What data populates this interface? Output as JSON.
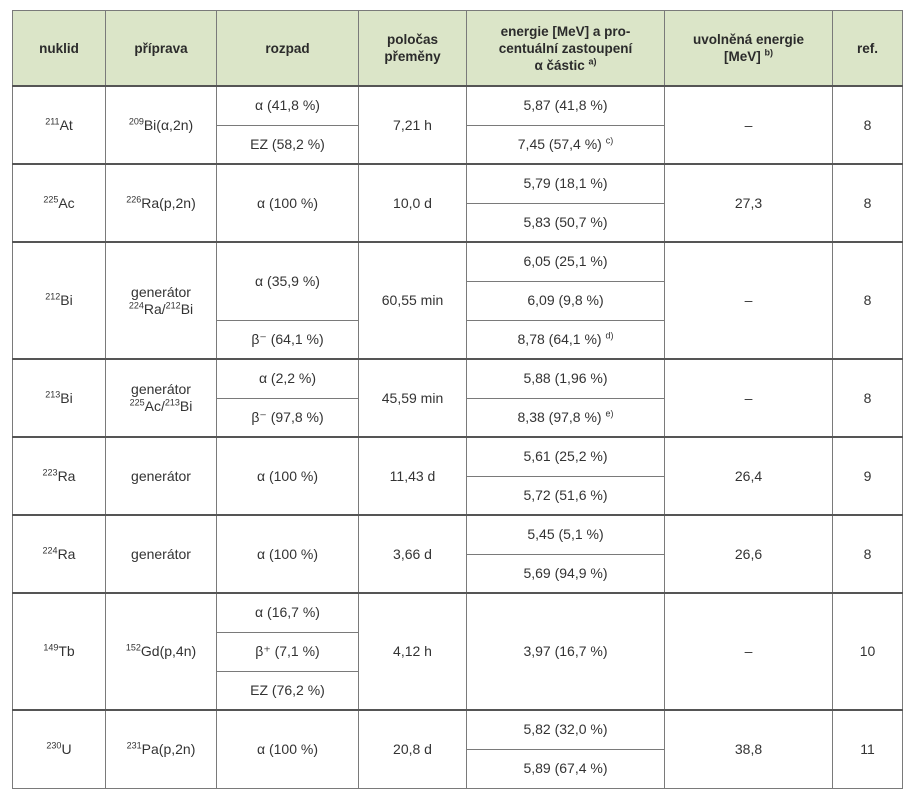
{
  "headers": {
    "nuklid": "nuklid",
    "priprava": "příprava",
    "rozpad": "rozpad",
    "polocas_line1": "poločas",
    "polocas_line2": "přeměny",
    "energie_line1": "energie [MeV] a pro-",
    "energie_line2": "centuální zastoupení",
    "energie_line3": "α částic",
    "energie_note": "a)",
    "uvolnena_line1": "uvolněná energie",
    "uvolnena_line2": "[MeV]",
    "uvolnena_note": "b)",
    "ref": "ref."
  },
  "rows": [
    {
      "nuclide_mass": "211",
      "nuclide_symbol": "At",
      "prep_mass": "209",
      "prep_rest": "Bi(α,2n)",
      "decay": [
        "α (41,8 %)",
        "EZ (58,2 %)"
      ],
      "half_life": "7,21 h",
      "energies": [
        "5,87 (41,8 %)",
        "7,45 (57,4 %)"
      ],
      "energy_notes": [
        "",
        "c)"
      ],
      "released": "–",
      "ref": "8"
    },
    {
      "nuclide_mass": "225",
      "nuclide_symbol": "Ac",
      "prep_mass": "226",
      "prep_rest": "Ra(p,2n)",
      "decay": [
        "α (100 %)"
      ],
      "half_life": "10,0 d",
      "energies": [
        "5,79 (18,1 %)",
        "5,83 (50,7 %)"
      ],
      "released": "27,3",
      "ref": "8"
    },
    {
      "nuclide_mass": "212",
      "nuclide_symbol": "Bi",
      "prep_line1": "generátor",
      "prep_a_mass": "224",
      "prep_a_sym": "Ra/",
      "prep_b_mass": "212",
      "prep_b_sym": "Bi",
      "decay": [
        "α (35,9 %)",
        "β⁻ (64,1 %)"
      ],
      "half_life": "60,55 min",
      "energies": [
        "6,05 (25,1 %)",
        "6,09 (9,8 %)",
        "8,78 (64,1 %)"
      ],
      "energy_note_last": "d)",
      "released": "–",
      "ref": "8"
    },
    {
      "nuclide_mass": "213",
      "nuclide_symbol": "Bi",
      "prep_line1": "generátor",
      "prep_a_mass": "225",
      "prep_a_sym": "Ac/",
      "prep_b_mass": "213",
      "prep_b_sym": "Bi",
      "decay": [
        "α (2,2 %)",
        "β⁻ (97,8 %)"
      ],
      "half_life": "45,59 min",
      "energies": [
        "5,88 (1,96 %)",
        "8,38 (97,8 %)"
      ],
      "energy_note_last": "e)",
      "released": "–",
      "ref": "8"
    },
    {
      "nuclide_mass": "223",
      "nuclide_symbol": "Ra",
      "prep": "generátor",
      "decay": [
        "α (100 %)"
      ],
      "half_life": "11,43 d",
      "energies": [
        "5,61 (25,2 %)",
        "5,72 (51,6 %)"
      ],
      "released": "26,4",
      "ref": "9"
    },
    {
      "nuclide_mass": "224",
      "nuclide_symbol": "Ra",
      "prep": "generátor",
      "decay": [
        "α (100 %)"
      ],
      "half_life": "3,66 d",
      "energies": [
        "5,45 (5,1 %)",
        "5,69 (94,9 %)"
      ],
      "released": "26,6",
      "ref": "8"
    },
    {
      "nuclide_mass": "149",
      "nuclide_symbol": "Tb",
      "prep_mass": "152",
      "prep_rest": "Gd(p,4n)",
      "decay": [
        "α (16,7 %)",
        "β⁺ (7,1 %)",
        "EZ (76,2 %)"
      ],
      "half_life": "4,12 h",
      "energies": [
        "3,97 (16,7 %)"
      ],
      "released": "–",
      "ref": "10"
    },
    {
      "nuclide_mass": "230",
      "nuclide_symbol": "U",
      "prep_mass": "231",
      "prep_rest": "Pa(p,2n)",
      "decay": [
        "α (100 %)"
      ],
      "half_life": "20,8 d",
      "energies": [
        "5,82 (32,0 %)",
        "5,89 (67,4 %)"
      ],
      "released": "38,8",
      "ref": "11"
    }
  ]
}
